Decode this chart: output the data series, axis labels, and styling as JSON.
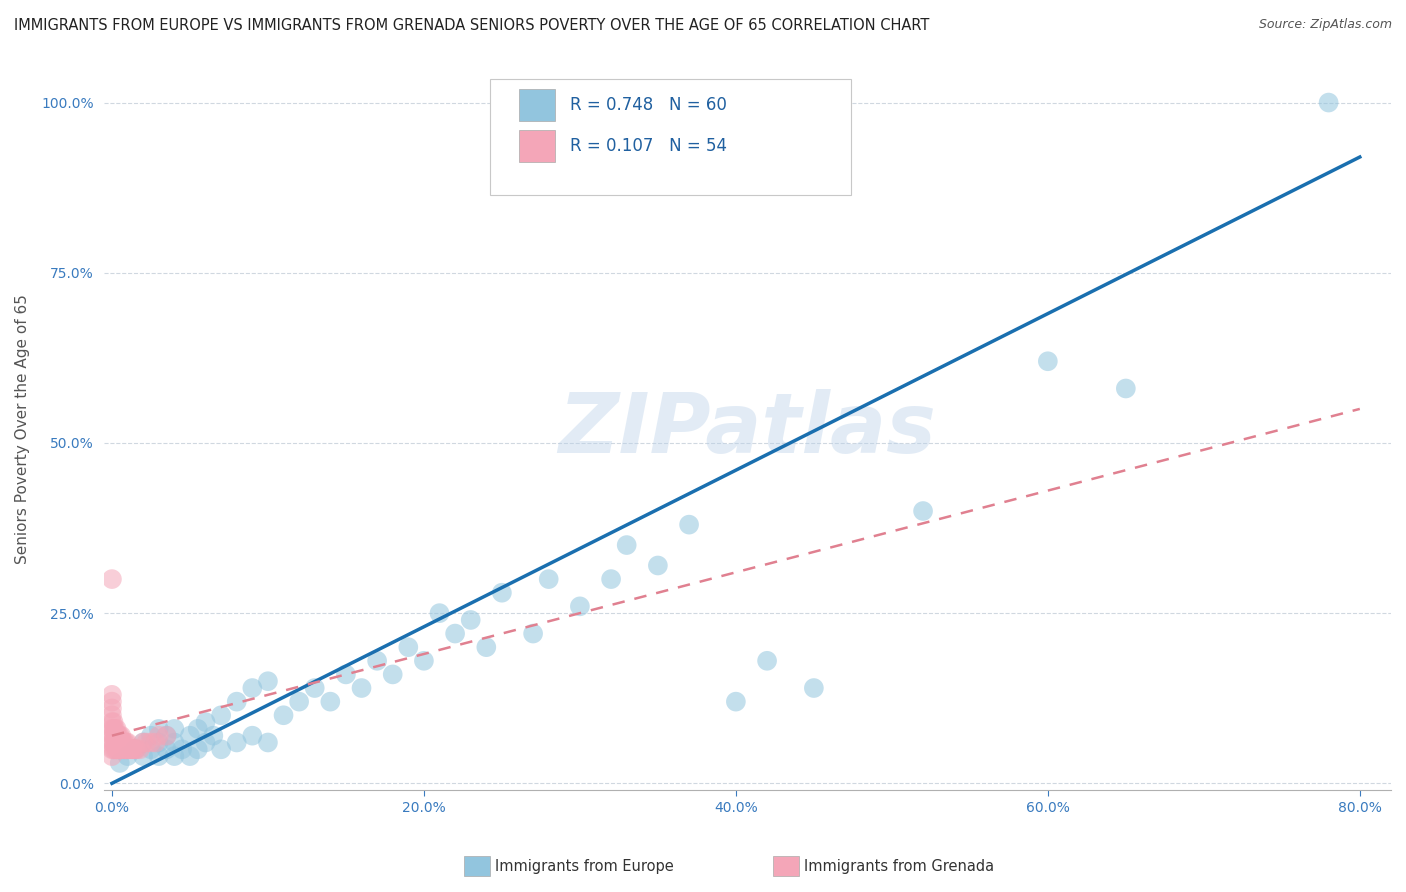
{
  "title": "IMMIGRANTS FROM EUROPE VS IMMIGRANTS FROM GRENADA SENIORS POVERTY OVER THE AGE OF 65 CORRELATION CHART",
  "source": "Source: ZipAtlas.com",
  "ylabel": "Seniors Poverty Over the Age of 65",
  "watermark": "ZIPatlas",
  "legend_europe_label": "Immigrants from Europe",
  "legend_grenada_label": "Immigrants from Grenada",
  "R_europe": 0.748,
  "N_europe": 60,
  "R_grenada": 0.107,
  "N_grenada": 54,
  "xlim": [
    -0.005,
    0.82
  ],
  "ylim": [
    -0.01,
    1.05
  ],
  "xticks": [
    0.0,
    0.2,
    0.4,
    0.6,
    0.8
  ],
  "xtick_labels": [
    "0.0%",
    "20.0%",
    "40.0%",
    "60.0%",
    "80.0%"
  ],
  "yticks": [
    0.0,
    0.25,
    0.5,
    0.75,
    1.0
  ],
  "ytick_labels": [
    "0.0%",
    "25.0%",
    "50.0%",
    "75.0%",
    "100.0%"
  ],
  "europe_color": "#92c5de",
  "grenada_color": "#f4a6b8",
  "europe_line_color": "#1a6faf",
  "grenada_line_color": "#e08090",
  "background_color": "#ffffff",
  "title_fontsize": 10.5,
  "axis_label_fontsize": 11,
  "tick_fontsize": 10,
  "europe_scatter_x": [
    0.005,
    0.01,
    0.015,
    0.02,
    0.02,
    0.025,
    0.025,
    0.03,
    0.03,
    0.03,
    0.035,
    0.035,
    0.04,
    0.04,
    0.04,
    0.045,
    0.05,
    0.05,
    0.055,
    0.055,
    0.06,
    0.06,
    0.065,
    0.07,
    0.07,
    0.08,
    0.08,
    0.09,
    0.09,
    0.1,
    0.1,
    0.11,
    0.12,
    0.13,
    0.14,
    0.15,
    0.16,
    0.17,
    0.18,
    0.19,
    0.2,
    0.21,
    0.22,
    0.23,
    0.24,
    0.25,
    0.27,
    0.28,
    0.3,
    0.32,
    0.33,
    0.35,
    0.37,
    0.4,
    0.42,
    0.45,
    0.52,
    0.6,
    0.65,
    0.78
  ],
  "europe_scatter_y": [
    0.03,
    0.04,
    0.05,
    0.04,
    0.06,
    0.05,
    0.07,
    0.04,
    0.06,
    0.08,
    0.05,
    0.07,
    0.04,
    0.06,
    0.08,
    0.05,
    0.04,
    0.07,
    0.05,
    0.08,
    0.06,
    0.09,
    0.07,
    0.05,
    0.1,
    0.06,
    0.12,
    0.07,
    0.14,
    0.06,
    0.15,
    0.1,
    0.12,
    0.14,
    0.12,
    0.16,
    0.14,
    0.18,
    0.16,
    0.2,
    0.18,
    0.25,
    0.22,
    0.24,
    0.2,
    0.28,
    0.22,
    0.3,
    0.26,
    0.3,
    0.35,
    0.32,
    0.38,
    0.12,
    0.18,
    0.14,
    0.4,
    0.62,
    0.58,
    1.0
  ],
  "grenada_scatter_x": [
    0.0,
    0.0,
    0.0,
    0.0,
    0.0,
    0.0,
    0.0,
    0.0,
    0.0,
    0.0,
    0.0,
    0.001,
    0.001,
    0.001,
    0.001,
    0.001,
    0.002,
    0.002,
    0.002,
    0.002,
    0.003,
    0.003,
    0.003,
    0.003,
    0.004,
    0.004,
    0.004,
    0.005,
    0.005,
    0.005,
    0.006,
    0.006,
    0.006,
    0.007,
    0.007,
    0.008,
    0.008,
    0.009,
    0.009,
    0.01,
    0.01,
    0.011,
    0.012,
    0.013,
    0.014,
    0.015,
    0.016,
    0.018,
    0.02,
    0.022,
    0.025,
    0.028,
    0.03,
    0.035
  ],
  "grenada_scatter_y": [
    0.04,
    0.05,
    0.06,
    0.07,
    0.08,
    0.09,
    0.1,
    0.11,
    0.12,
    0.13,
    0.3,
    0.05,
    0.06,
    0.07,
    0.08,
    0.09,
    0.05,
    0.06,
    0.07,
    0.08,
    0.05,
    0.06,
    0.07,
    0.08,
    0.05,
    0.06,
    0.07,
    0.05,
    0.06,
    0.07,
    0.05,
    0.06,
    0.07,
    0.05,
    0.06,
    0.05,
    0.06,
    0.05,
    0.06,
    0.05,
    0.06,
    0.05,
    0.05,
    0.05,
    0.05,
    0.05,
    0.05,
    0.05,
    0.06,
    0.06,
    0.06,
    0.06,
    0.07,
    0.07
  ],
  "europe_regline": [
    0.0,
    0.8,
    0.0,
    0.92
  ],
  "grenada_regline": [
    0.0,
    0.8,
    0.07,
    0.55
  ]
}
